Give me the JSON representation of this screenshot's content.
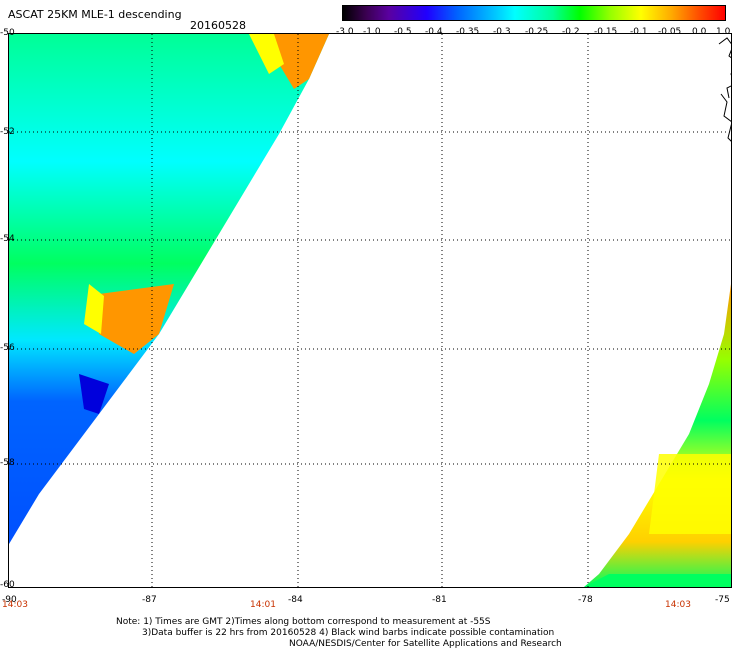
{
  "header": {
    "title": "ASCAT 25KM MLE-1 descending",
    "date": "20160528"
  },
  "colorbar": {
    "labels": [
      "-3.0",
      "-1.0",
      "-0.5",
      "-0.4",
      "-0.35",
      "-0.3",
      "-0.25",
      "-0.2",
      "-0.15",
      "-0.1",
      "-0.05",
      "0.0",
      "1.0"
    ]
  },
  "axes": {
    "lat_labels": [
      "-50",
      "-52",
      "-54",
      "-56",
      "-58",
      "-60"
    ],
    "lon_labels": [
      "-90",
      "-87",
      "-84",
      "-81",
      "-78",
      "-75"
    ],
    "times": [
      "14:03",
      "14:01",
      "14:03"
    ]
  },
  "notes": {
    "line1": "Note: 1) Times are GMT 2)Times along bottom correspond to measurement at -55S",
    "line2": "3)Data buffer is 22 hrs from 20160528 4) Black wind barbs indicate possible contamination",
    "line3": "NOAA/NESDIS/Center for Satellite Applications and Research"
  },
  "colors": {
    "orange": "#ff9600",
    "yellow": "#ffff00",
    "green": "#00ff00",
    "cyan": "#00ffff",
    "blue": "#0064ff",
    "time_red": "#c83200"
  }
}
